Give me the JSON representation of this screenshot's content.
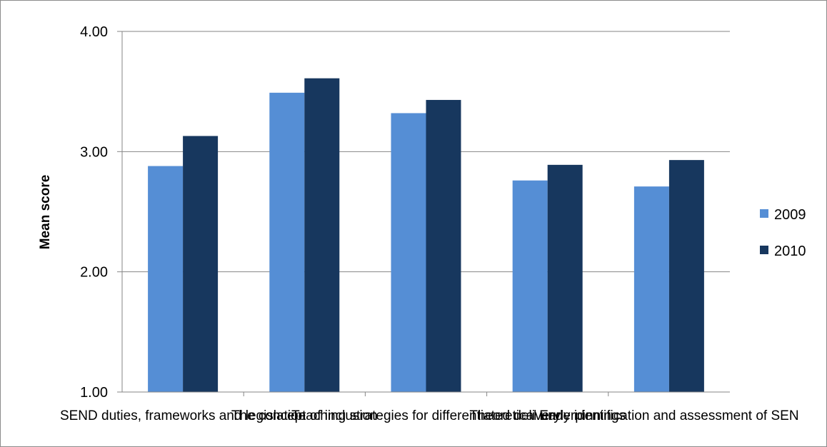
{
  "chart_data": {
    "type": "bar",
    "ylabel": "Mean score",
    "xlabel": "",
    "ylim": [
      1.0,
      4.0
    ],
    "yticks": [
      "1.00",
      "2.00",
      "3.00",
      "4.00"
    ],
    "grid": true,
    "legend_position": "right",
    "categories": [
      "SEND duties, frameworks and legislation",
      "The concept of inclusion",
      "Teaching strategies for differentiated delivery",
      "Theoretical underpinnings",
      "Early identification and assessment of SEN"
    ],
    "series": [
      {
        "name": "2009",
        "color": "#558ed5",
        "values": [
          2.88,
          3.49,
          3.32,
          2.76,
          2.71
        ]
      },
      {
        "name": "2010",
        "color": "#17375e",
        "values": [
          3.13,
          3.61,
          3.43,
          2.89,
          2.93
        ]
      }
    ]
  }
}
